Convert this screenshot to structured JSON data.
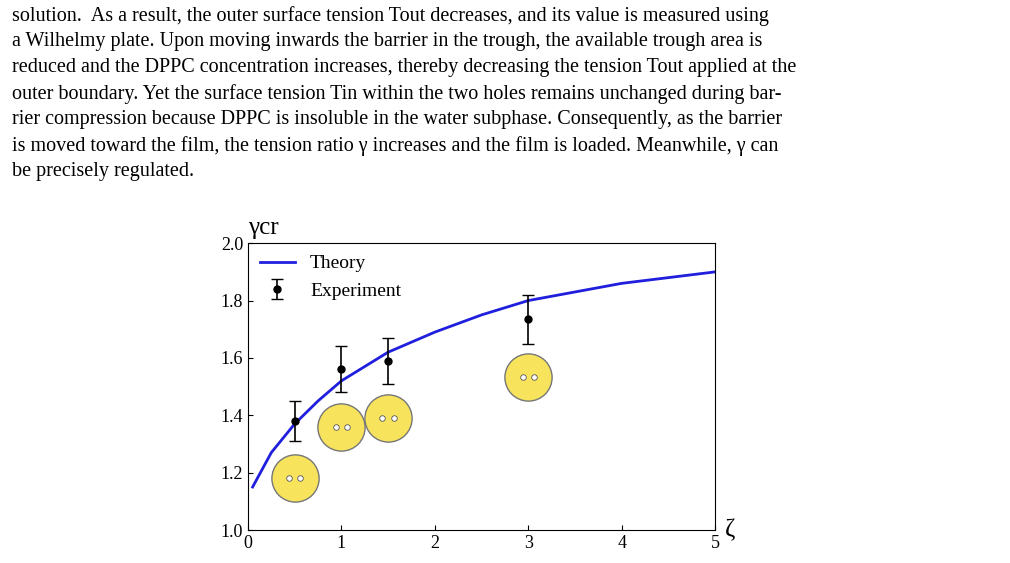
{
  "paragraph": {
    "lines": [
      "solution.  As a result, the outer surface tension Tout decreases, and its value is measured using",
      "a Wilhelmy plate. Upon moving inwards the barrier in the trough, the available trough area is",
      "reduced and the DPPC concentration increases, thereby decreasing the tension Tout applied at the",
      "outer boundary. Yet the surface tension Tin within the two holes remains unchanged during bar-",
      "rier compression because DPPC is insoluble in the water subphase. Consequently, as the barrier",
      "is moved toward the film, the tension ratio γ increases and the film is loaded. Meanwhile, γ can",
      "be precisely regulated."
    ]
  },
  "chart_data": {
    "type": "line",
    "xlabel": "ζ",
    "ylabel": "γcr",
    "xlim": [
      0,
      5
    ],
    "xticks": [
      0,
      1,
      2,
      3,
      4,
      5
    ],
    "ylim": [
      1.0,
      2.0
    ],
    "yticks": [
      {
        "value": 1.0,
        "label": "1.0"
      },
      {
        "value": 1.2,
        "label": "1.2"
      },
      {
        "value": 1.4,
        "label": "1.4"
      },
      {
        "value": 1.6,
        "label": "1.6"
      },
      {
        "value": 1.8,
        "label": "1.8"
      },
      {
        "value": 2.0,
        "label": "2.0"
      }
    ],
    "legend": "upper left",
    "grid": false,
    "series": [
      {
        "name": "Theory",
        "type": "line",
        "color": "#1f1fdd",
        "line_style": "solid",
        "x": [
          0.05,
          0.25,
          0.5,
          0.75,
          1.0,
          1.5,
          2.0,
          2.5,
          3.0,
          3.5,
          4.0,
          4.5,
          5.0
        ],
        "values": [
          1.15,
          1.27,
          1.37,
          1.45,
          1.52,
          1.62,
          1.69,
          1.75,
          1.8,
          1.83,
          1.86,
          1.88,
          1.9
        ]
      },
      {
        "name": "Experiment",
        "type": "scatter",
        "color": "#000000",
        "marker": "o",
        "x": [
          0.5,
          1.0,
          1.5,
          3.0
        ],
        "values": [
          1.38,
          1.56,
          1.59,
          1.735
        ],
        "errors": [
          0.07,
          0.08,
          0.08,
          0.085
        ]
      }
    ]
  }
}
